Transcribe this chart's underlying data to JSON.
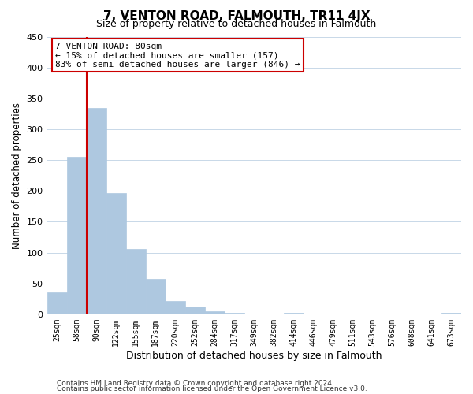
{
  "title": "7, VENTON ROAD, FALMOUTH, TR11 4JX",
  "subtitle": "Size of property relative to detached houses in Falmouth",
  "xlabel": "Distribution of detached houses by size in Falmouth",
  "ylabel": "Number of detached properties",
  "bar_labels": [
    "25sqm",
    "58sqm",
    "90sqm",
    "122sqm",
    "155sqm",
    "187sqm",
    "220sqm",
    "252sqm",
    "284sqm",
    "317sqm",
    "349sqm",
    "382sqm",
    "414sqm",
    "446sqm",
    "479sqm",
    "511sqm",
    "543sqm",
    "576sqm",
    "608sqm",
    "641sqm",
    "673sqm"
  ],
  "bar_values": [
    36,
    255,
    335,
    197,
    106,
    57,
    21,
    12,
    5,
    2,
    0,
    0,
    2,
    0,
    0,
    0,
    0,
    0,
    0,
    0,
    2
  ],
  "bar_color": "#aec8e0",
  "bar_edgecolor": "#aec8e0",
  "vline_color": "#cc0000",
  "vline_x_index": 1.5,
  "annotation_line1": "7 VENTON ROAD: 80sqm",
  "annotation_line2": "← 15% of detached houses are smaller (157)",
  "annotation_line3": "83% of semi-detached houses are larger (846) →",
  "annotation_box_color": "#ffffff",
  "annotation_box_edgecolor": "#cc0000",
  "ylim": [
    0,
    450
  ],
  "yticks": [
    0,
    50,
    100,
    150,
    200,
    250,
    300,
    350,
    400,
    450
  ],
  "footer_line1": "Contains HM Land Registry data © Crown copyright and database right 2024.",
  "footer_line2": "Contains public sector information licensed under the Open Government Licence v3.0.",
  "bg_color": "#ffffff",
  "grid_color": "#c8d8e8"
}
